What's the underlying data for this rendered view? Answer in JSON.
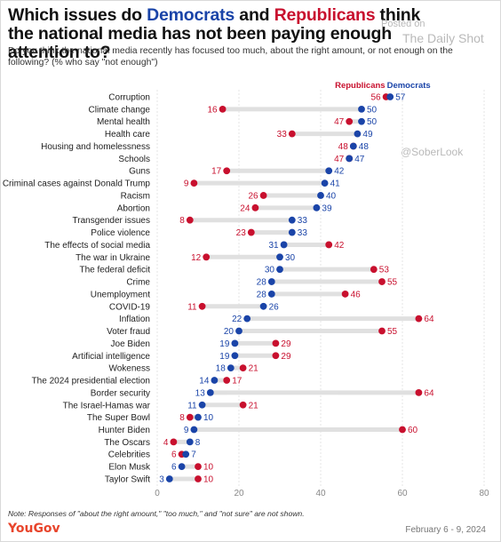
{
  "title": {
    "part1": "Which issues do ",
    "democrats": "Democrats",
    "part2": " and ",
    "republicans": "Republicans",
    "part3": " think the national media has not been paying enough attention to?"
  },
  "subtitle": "Do you think the national media recently has focused too much, about the right amount, or not enough on the following? (% who say \"not enough\")",
  "watermark": {
    "posted": "Posted on",
    "source": "The Daily Shot",
    "handle": "@SoberLook"
  },
  "note": "Note: Responses of \"about the right amount,\" \"too much,\" and \"not sure\" are not shown.",
  "footer": {
    "logo": "YouGov",
    "date": "February 6 - 9, 2024"
  },
  "colors": {
    "democrats": "#1a44a8",
    "republicans": "#c8102e",
    "connector": "#e0e0e0",
    "grid": "#e6e6e6"
  },
  "chart_data": {
    "type": "scatter",
    "xlim": [
      0,
      80
    ],
    "xticks": [
      0,
      20,
      40,
      60,
      80
    ],
    "grid": true,
    "legend": [
      "Republicans",
      "Democrats"
    ],
    "legend_position": "top",
    "categories": [
      "Corruption",
      "Climate change",
      "Mental health",
      "Health care",
      "Housing and homelessness",
      "Schools",
      "Guns",
      "Criminal cases against Donald Trump",
      "Racism",
      "Abortion",
      "Transgender issues",
      "Police violence",
      "The effects of social media",
      "The war in Ukraine",
      "The federal deficit",
      "Crime",
      "Unemployment",
      "COVID-19",
      "Inflation",
      "Voter fraud",
      "Joe Biden",
      "Artificial intelligence",
      "Wokeness",
      "The 2024 presidential election",
      "Border security",
      "The Israel-Hamas war",
      "The Super Bowl",
      "Hunter Biden",
      "The Oscars",
      "Celebrities",
      "Elon Musk",
      "Taylor Swift"
    ],
    "series": [
      {
        "name": "Democrats",
        "color": "#1a44a8",
        "values": [
          57,
          50,
          50,
          49,
          48,
          47,
          42,
          41,
          40,
          39,
          33,
          33,
          31,
          30,
          30,
          28,
          28,
          26,
          22,
          20,
          19,
          19,
          18,
          14,
          13,
          11,
          10,
          9,
          8,
          7,
          6,
          3
        ]
      },
      {
        "name": "Republicans",
        "color": "#c8102e",
        "values": [
          56,
          16,
          47,
          33,
          48,
          47,
          17,
          9,
          26,
          24,
          8,
          23,
          42,
          12,
          53,
          55,
          46,
          11,
          64,
          55,
          29,
          29,
          21,
          17,
          64,
          21,
          8,
          60,
          4,
          6,
          10,
          10
        ]
      }
    ]
  }
}
